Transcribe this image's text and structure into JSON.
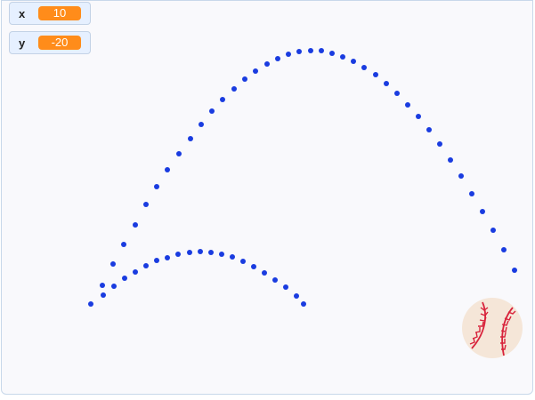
{
  "variables": [
    {
      "name": "x",
      "value": "10"
    },
    {
      "name": "y",
      "value": "-20"
    }
  ],
  "sprite": {
    "icon": "baseball-icon"
  },
  "trail": {
    "color": "#1a3ce0",
    "small_arc": [
      {
        "x": -189,
        "y": -118
      },
      {
        "x": -175,
        "y": -108
      },
      {
        "x": -163,
        "y": -98
      },
      {
        "x": -151,
        "y": -89
      },
      {
        "x": -139,
        "y": -82
      },
      {
        "x": -127,
        "y": -75
      },
      {
        "x": -115,
        "y": -69
      },
      {
        "x": -103,
        "y": -66
      },
      {
        "x": -91,
        "y": -62
      },
      {
        "x": -78,
        "y": -60
      },
      {
        "x": -66,
        "y": -59
      },
      {
        "x": -54,
        "y": -60
      },
      {
        "x": -42,
        "y": -62
      },
      {
        "x": -30,
        "y": -65
      },
      {
        "x": -18,
        "y": -70
      },
      {
        "x": -6,
        "y": -76
      },
      {
        "x": 6,
        "y": -83
      },
      {
        "x": 18,
        "y": -91
      },
      {
        "x": 30,
        "y": -99
      },
      {
        "x": 42,
        "y": -109
      },
      {
        "x": 50,
        "y": -118
      }
    ],
    "large_arc": [
      {
        "x": -176,
        "y": -97
      },
      {
        "x": -164,
        "y": -73
      },
      {
        "x": -152,
        "y": -51
      },
      {
        "x": -139,
        "y": -29
      },
      {
        "x": -127,
        "y": -6
      },
      {
        "x": -115,
        "y": 14
      },
      {
        "x": -103,
        "y": 33
      },
      {
        "x": -90,
        "y": 51
      },
      {
        "x": -77,
        "y": 68
      },
      {
        "x": -65,
        "y": 84
      },
      {
        "x": -53,
        "y": 99
      },
      {
        "x": -41,
        "y": 112
      },
      {
        "x": -28,
        "y": 124
      },
      {
        "x": -16,
        "y": 135
      },
      {
        "x": -4,
        "y": 144
      },
      {
        "x": 9,
        "y": 152
      },
      {
        "x": 21,
        "y": 158
      },
      {
        "x": 33,
        "y": 163
      },
      {
        "x": 45,
        "y": 166
      },
      {
        "x": 58,
        "y": 167
      },
      {
        "x": 70,
        "y": 167
      },
      {
        "x": 82,
        "y": 164
      },
      {
        "x": 94,
        "y": 160
      },
      {
        "x": 106,
        "y": 155
      },
      {
        "x": 118,
        "y": 148
      },
      {
        "x": 131,
        "y": 140
      },
      {
        "x": 143,
        "y": 130
      },
      {
        "x": 155,
        "y": 119
      },
      {
        "x": 167,
        "y": 106
      },
      {
        "x": 179,
        "y": 93
      },
      {
        "x": 191,
        "y": 78
      },
      {
        "x": 203,
        "y": 62
      },
      {
        "x": 215,
        "y": 44
      },
      {
        "x": 227,
        "y": 26
      },
      {
        "x": 239,
        "y": 6
      },
      {
        "x": 251,
        "y": -14
      },
      {
        "x": 263,
        "y": -35
      },
      {
        "x": 275,
        "y": -57
      },
      {
        "x": 287,
        "y": -80
      }
    ]
  }
}
